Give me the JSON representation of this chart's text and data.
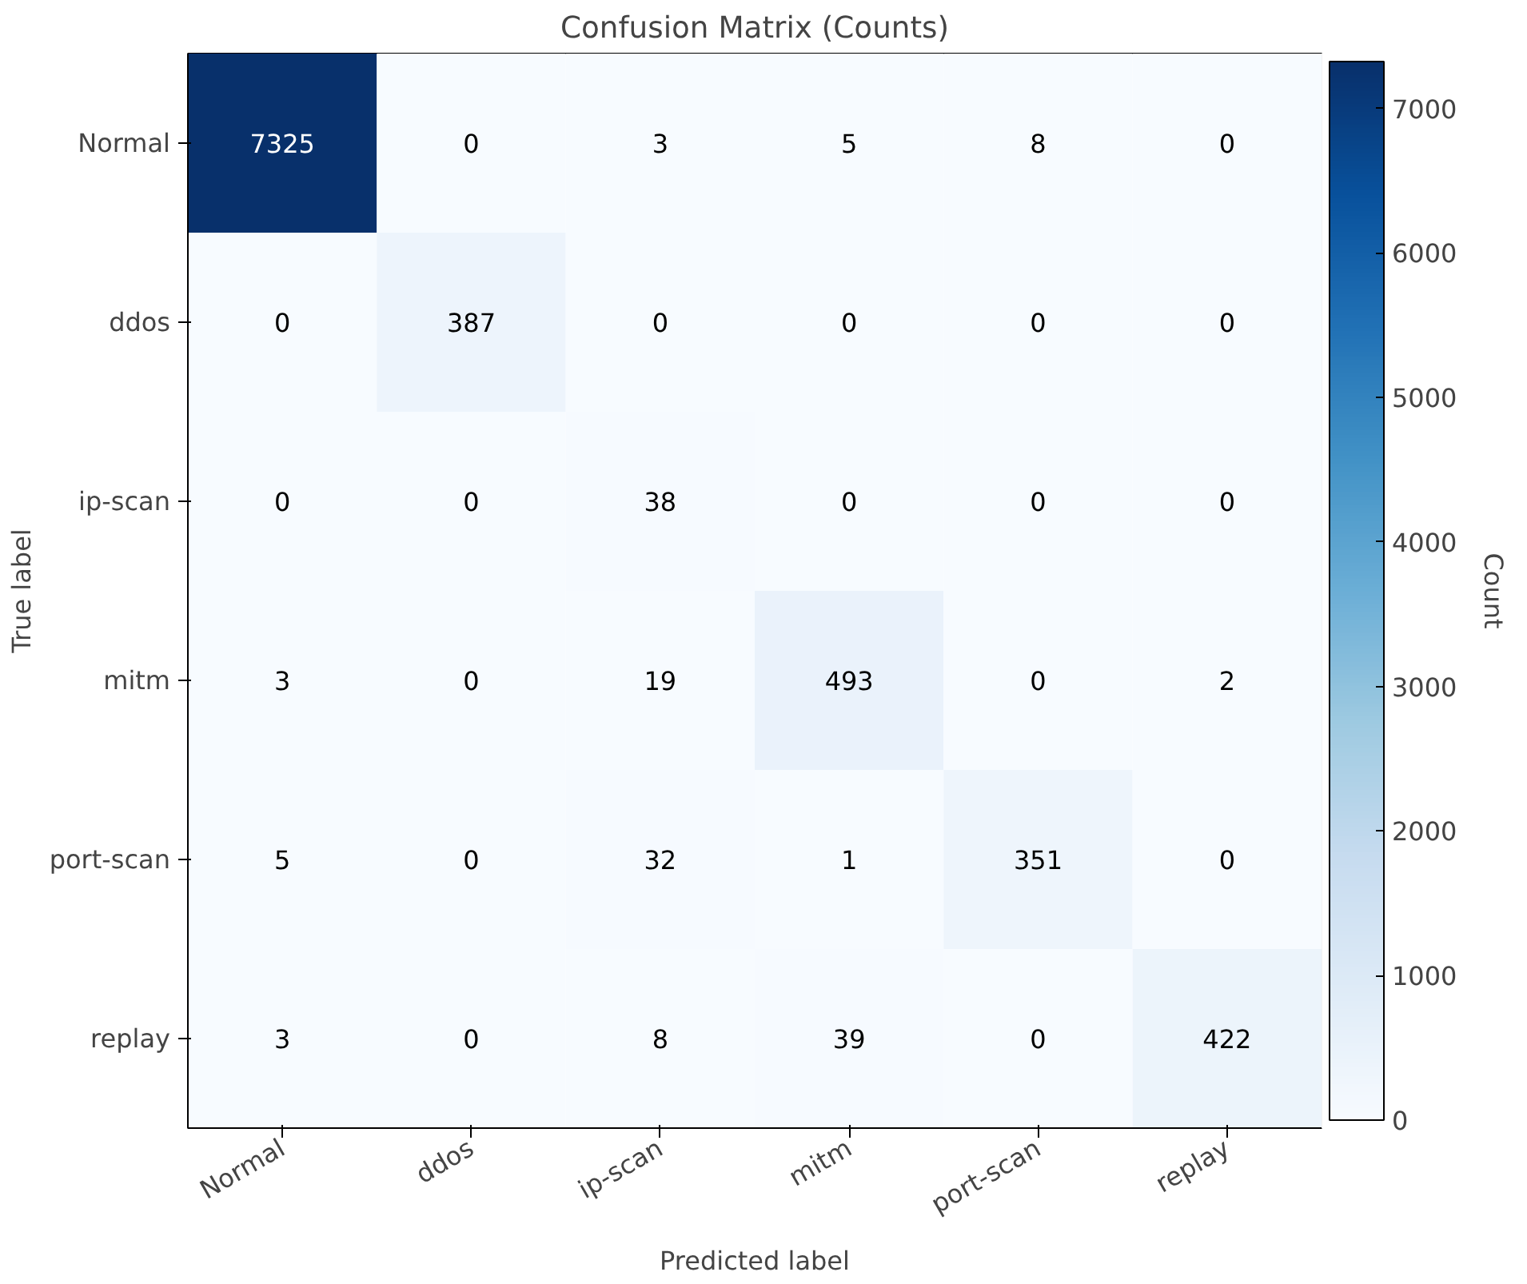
{
  "chart_data": {
    "type": "heatmap",
    "title": "Confusion Matrix (Counts)",
    "xlabel": "Predicted label",
    "ylabel": "True label",
    "clabel": "Count",
    "categories": [
      "Normal",
      "ddos",
      "ip-scan",
      "mitm",
      "port-scan",
      "replay"
    ],
    "y_categories": [
      "Normal",
      "ddos",
      "ip-scan",
      "mitm",
      "port-scan",
      "replay"
    ],
    "cells": [
      [
        7325,
        0,
        3,
        5,
        8,
        0
      ],
      [
        0,
        387,
        0,
        0,
        0,
        0
      ],
      [
        0,
        0,
        38,
        0,
        0,
        0
      ],
      [
        3,
        0,
        19,
        493,
        0,
        2
      ],
      [
        5,
        0,
        32,
        1,
        351,
        0
      ],
      [
        3,
        0,
        8,
        39,
        0,
        422
      ]
    ],
    "clim": [
      0,
      7325
    ],
    "cticks": [
      0,
      1000,
      2000,
      3000,
      4000,
      5000,
      6000,
      7000
    ],
    "data_labels": true
  }
}
